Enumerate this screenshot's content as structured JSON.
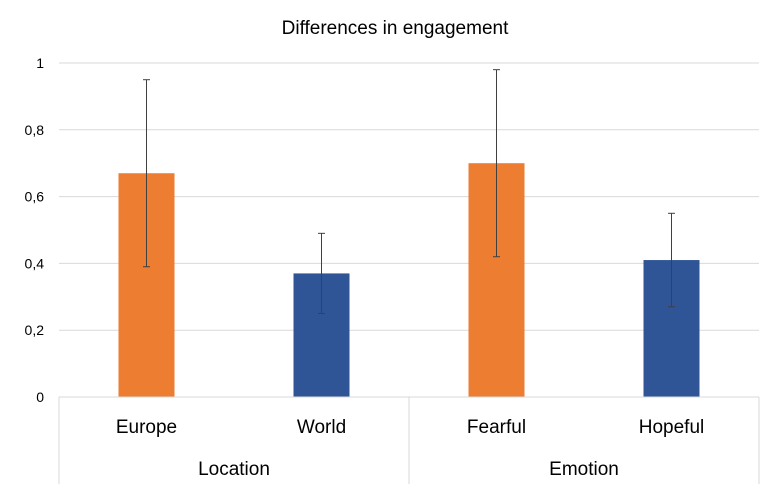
{
  "chart_data": {
    "type": "bar",
    "title": "Differences in engagement",
    "categories": [
      "Europe",
      "World",
      "Fearful",
      "Hopeful"
    ],
    "groups": [
      {
        "label": "Location",
        "categories": [
          "Europe",
          "World"
        ]
      },
      {
        "label": "Emotion",
        "categories": [
          "Fearful",
          "Hopeful"
        ]
      }
    ],
    "values": [
      0.67,
      0.37,
      0.7,
      0.41
    ],
    "error_bars": [
      {
        "low": 0.39,
        "high": 0.95
      },
      {
        "low": 0.25,
        "high": 0.49
      },
      {
        "low": 0.42,
        "high": 0.98
      },
      {
        "low": 0.27,
        "high": 0.55
      }
    ],
    "bar_colors": [
      "#ED7D31",
      "#2F5597",
      "#ED7D31",
      "#2F5597"
    ],
    "ylim": [
      0,
      1
    ],
    "yticks": [
      0,
      0.2,
      0.4,
      0.6,
      0.8,
      1
    ],
    "ytick_labels": [
      "0",
      "0,2",
      "0,4",
      "0,6",
      "0,8",
      "1"
    ],
    "grid": true,
    "legend": "none",
    "xlabel": "",
    "ylabel": ""
  }
}
